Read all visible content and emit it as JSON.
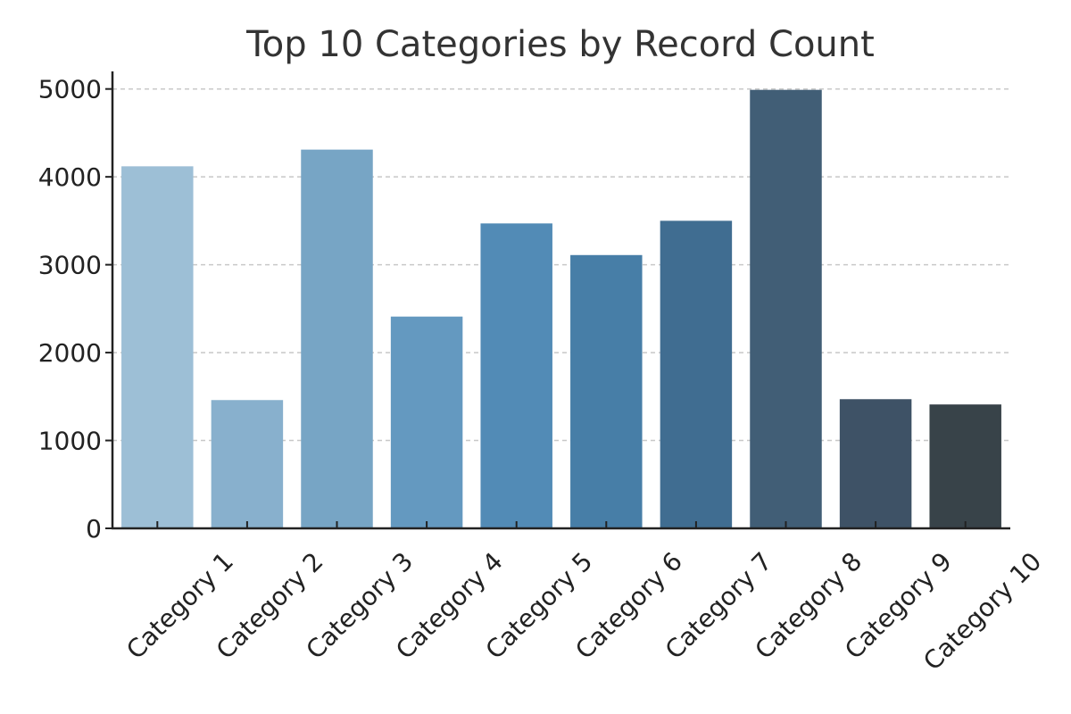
{
  "chart_data": {
    "type": "bar",
    "title": "Top 10 Categories by Record Count",
    "xlabel": "",
    "ylabel": "",
    "categories": [
      "Category 1",
      "Category 2",
      "Category 3",
      "Category 4",
      "Category 5",
      "Category 6",
      "Category 7",
      "Category 8",
      "Category 9",
      "Category 10"
    ],
    "values": [
      4120,
      1460,
      4310,
      2410,
      3470,
      3110,
      3500,
      4990,
      1470,
      1410
    ],
    "ylim": [
      0,
      5200
    ],
    "yticks": [
      0,
      1000,
      2000,
      3000,
      4000,
      5000
    ],
    "ytick_labels": [
      "0",
      "1000",
      "2000",
      "3000",
      "4000",
      "5000"
    ],
    "grid": "horizontal dashed",
    "legend": "none",
    "colors": [
      "#9dbfd6",
      "#88b0cd",
      "#77a5c5",
      "#6499c0",
      "#528bb6",
      "#477ea7",
      "#406d91",
      "#415e76",
      "#3e5266",
      "#384349"
    ]
  }
}
